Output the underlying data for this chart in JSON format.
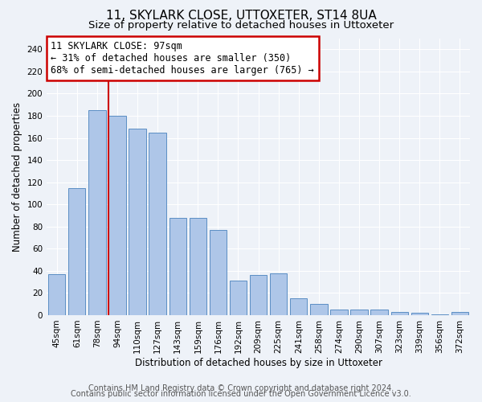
{
  "title1": "11, SKYLARK CLOSE, UTTOXETER, ST14 8UA",
  "title2": "Size of property relative to detached houses in Uttoxeter",
  "xlabel": "Distribution of detached houses by size in Uttoxeter",
  "ylabel": "Number of detached properties",
  "categories": [
    "45sqm",
    "61sqm",
    "78sqm",
    "94sqm",
    "110sqm",
    "127sqm",
    "143sqm",
    "159sqm",
    "176sqm",
    "192sqm",
    "209sqm",
    "225sqm",
    "241sqm",
    "258sqm",
    "274sqm",
    "290sqm",
    "307sqm",
    "323sqm",
    "339sqm",
    "356sqm",
    "372sqm"
  ],
  "values": [
    37,
    115,
    185,
    180,
    168,
    165,
    88,
    88,
    77,
    31,
    36,
    38,
    15,
    10,
    5,
    5,
    5,
    3,
    2,
    1,
    3
  ],
  "bar_color": "#aec6e8",
  "bar_edge_color": "#5b8ec4",
  "property_line_x": 3,
  "property_line_label": "11 SKYLARK CLOSE: 97sqm",
  "annotation_line1": "← 31% of detached houses are smaller (350)",
  "annotation_line2": "68% of semi-detached houses are larger (765) →",
  "annotation_box_color": "#ffffff",
  "annotation_box_edge_color": "#cc0000",
  "line_color": "#cc0000",
  "ylim": [
    0,
    250
  ],
  "yticks": [
    0,
    20,
    40,
    60,
    80,
    100,
    120,
    140,
    160,
    180,
    200,
    220,
    240
  ],
  "footer1": "Contains HM Land Registry data © Crown copyright and database right 2024.",
  "footer2": "Contains public sector information licensed under the Open Government Licence v3.0.",
  "bg_color": "#eef2f8",
  "plot_bg_color": "#eef2f8",
  "grid_color": "#ffffff",
  "title1_fontsize": 11,
  "title2_fontsize": 9.5,
  "axis_label_fontsize": 8.5,
  "tick_fontsize": 7.5,
  "footer_fontsize": 7,
  "annot_fontsize": 8.5
}
